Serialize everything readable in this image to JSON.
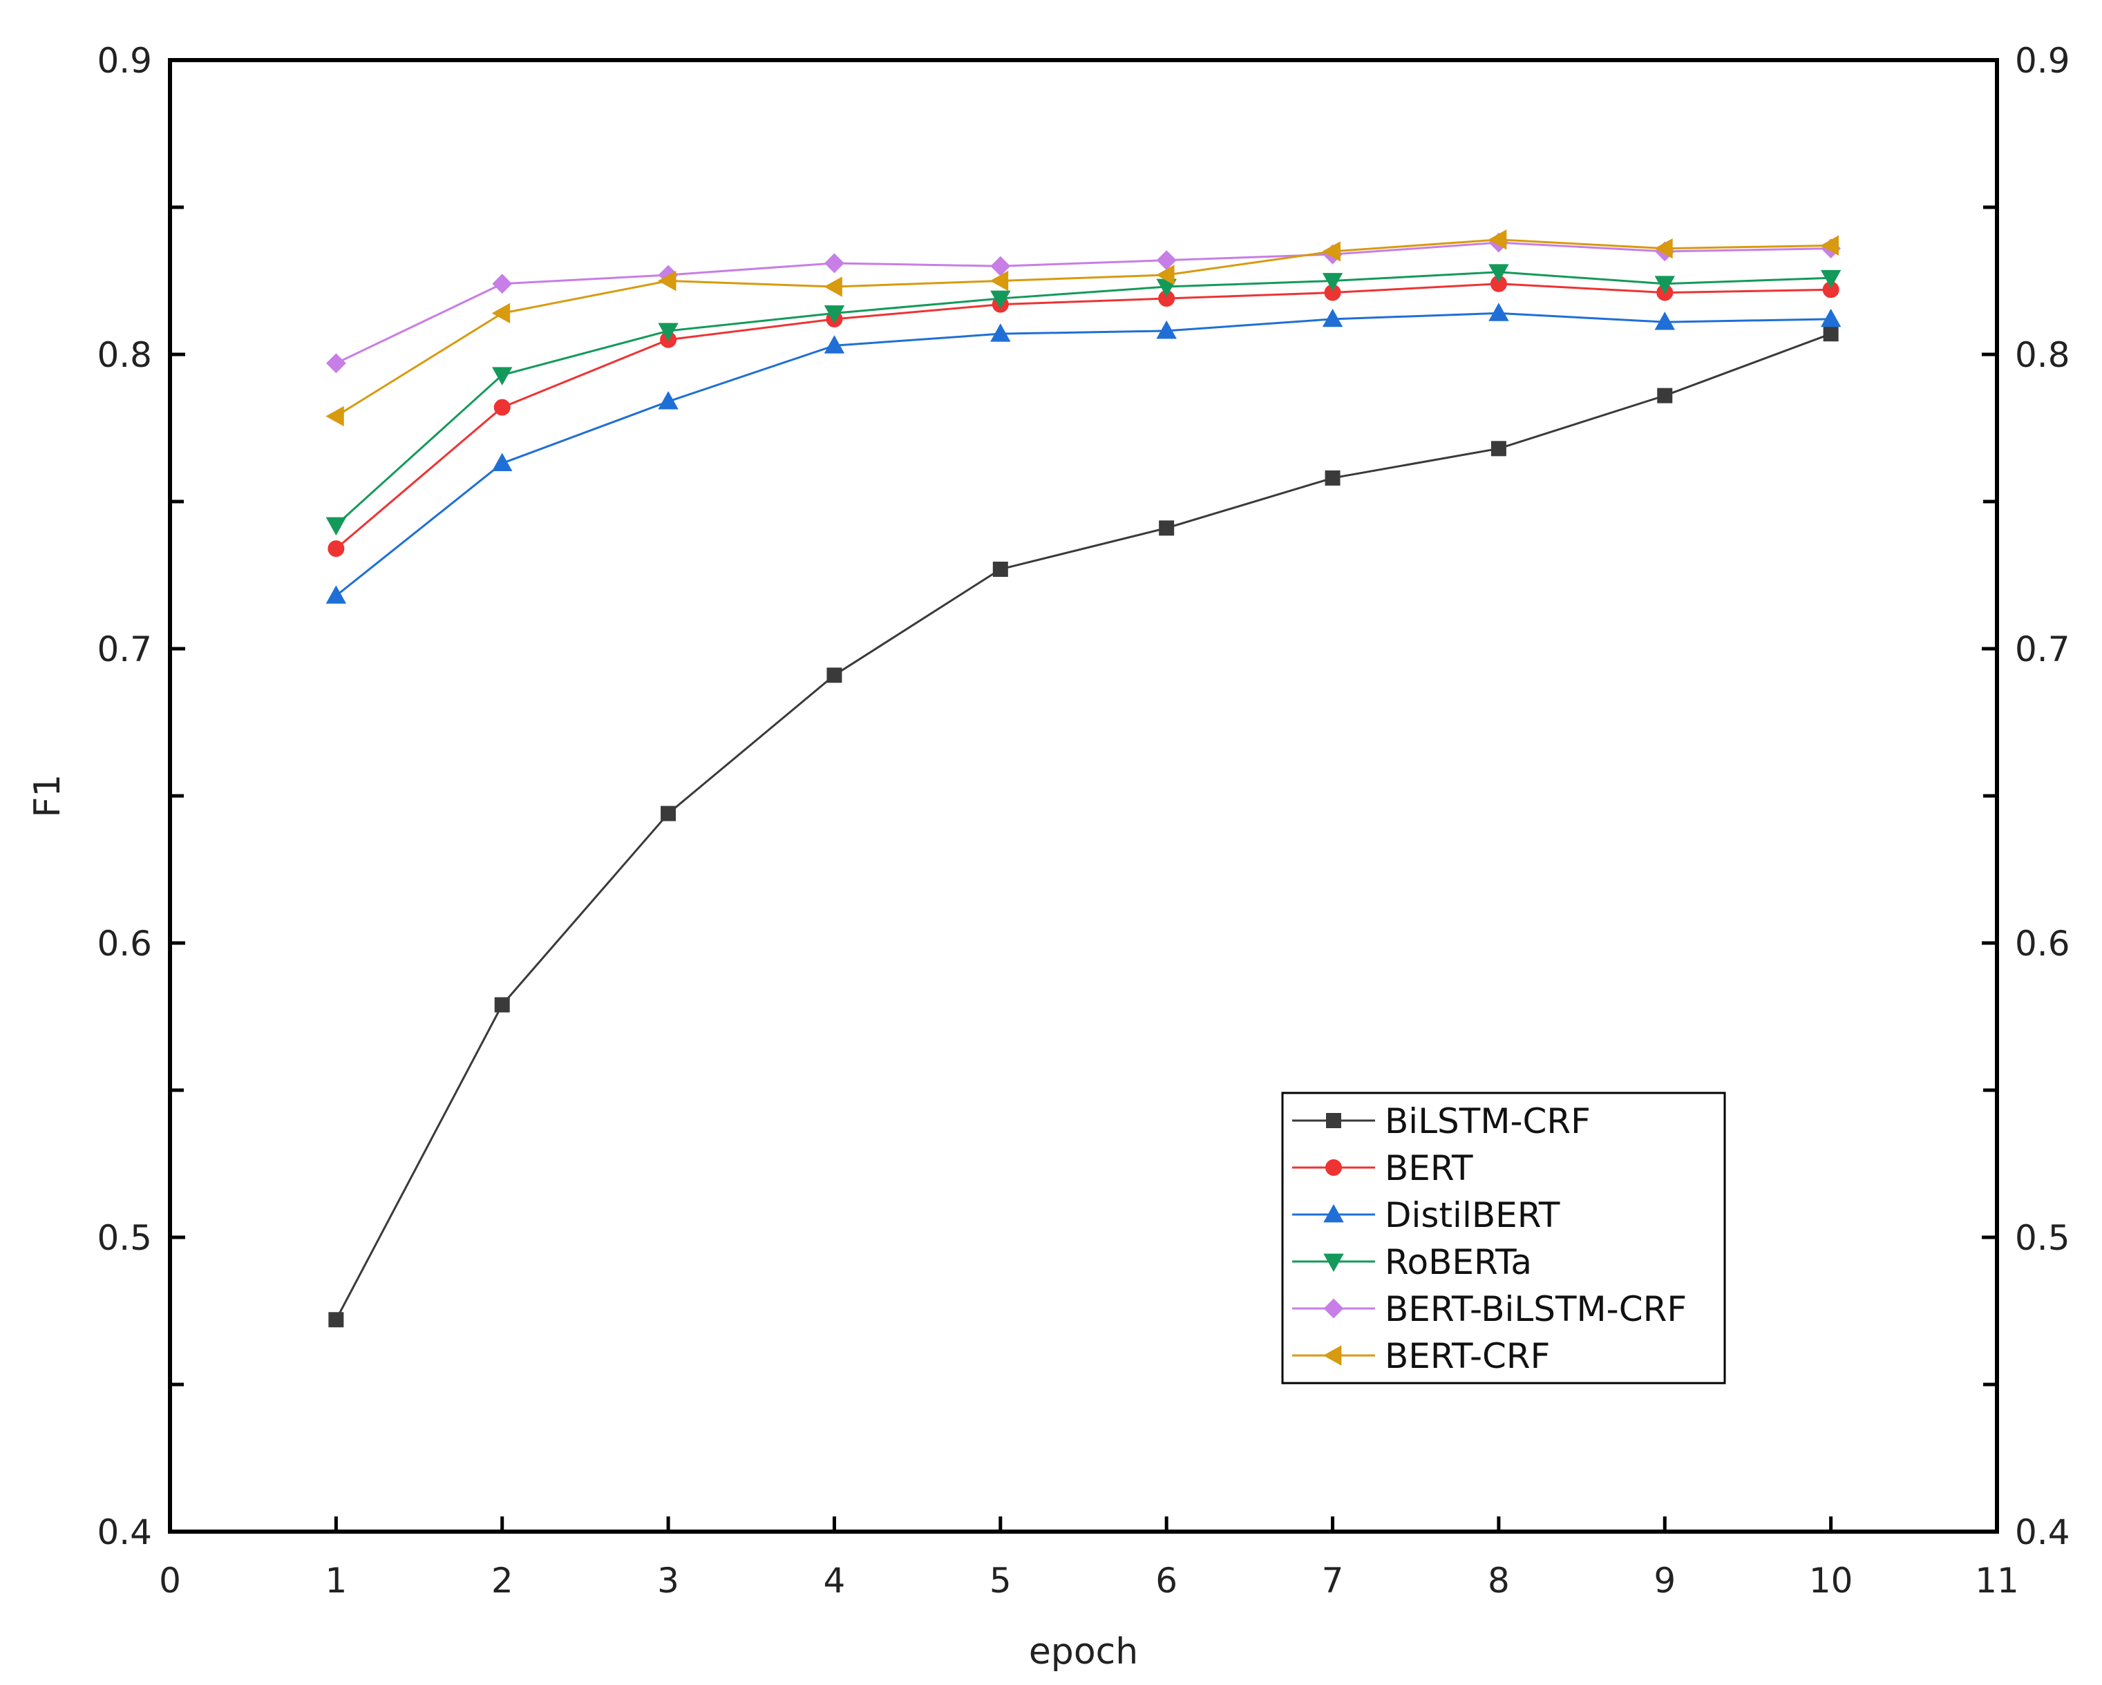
{
  "chart_data": {
    "type": "line",
    "xlabel": "epoch",
    "ylabel": "F1",
    "xlim": [
      0,
      11
    ],
    "ylim": [
      0.4,
      0.9
    ],
    "x_ticks": [
      0,
      1,
      2,
      3,
      4,
      5,
      6,
      7,
      8,
      9,
      10,
      11
    ],
    "y_ticks": [
      0.4,
      0.5,
      0.6,
      0.7,
      0.8,
      0.9
    ],
    "y_tick_labels": [
      "0.4",
      "0.5",
      "0.6",
      "0.7",
      "0.8",
      "0.9"
    ],
    "right_axis_mirrored": true,
    "grid": false,
    "legend_position": "bottom-right",
    "x": [
      1,
      2,
      3,
      4,
      5,
      6,
      7,
      8,
      9,
      10
    ],
    "series": [
      {
        "name": "BiLSTM-CRF",
        "color": "#3a3a3a",
        "marker": "square",
        "values": [
          0.472,
          0.579,
          0.644,
          0.691,
          0.727,
          0.741,
          0.758,
          0.768,
          0.786,
          0.807
        ]
      },
      {
        "name": "BERT",
        "color": "#ee3333",
        "marker": "circle",
        "values": [
          0.734,
          0.782,
          0.805,
          0.812,
          0.817,
          0.819,
          0.821,
          0.824,
          0.821,
          0.822
        ]
      },
      {
        "name": "DistilBERT",
        "color": "#1f6fd6",
        "marker": "triangle-up",
        "values": [
          0.718,
          0.763,
          0.784,
          0.803,
          0.807,
          0.808,
          0.812,
          0.814,
          0.811,
          0.812
        ]
      },
      {
        "name": "RoBERTa",
        "color": "#139a5a",
        "marker": "triangle-down",
        "values": [
          0.742,
          0.793,
          0.808,
          0.814,
          0.819,
          0.823,
          0.825,
          0.828,
          0.824,
          0.826
        ]
      },
      {
        "name": "BERT-BiLSTM-CRF",
        "color": "#c77ee6",
        "marker": "diamond",
        "values": [
          0.797,
          0.824,
          0.827,
          0.831,
          0.83,
          0.832,
          0.834,
          0.838,
          0.835,
          0.836
        ]
      },
      {
        "name": "BERT-CRF",
        "color": "#d89a0e",
        "marker": "triangle-left",
        "values": [
          0.779,
          0.814,
          0.825,
          0.823,
          0.825,
          0.827,
          0.835,
          0.839,
          0.836,
          0.837
        ]
      }
    ]
  }
}
